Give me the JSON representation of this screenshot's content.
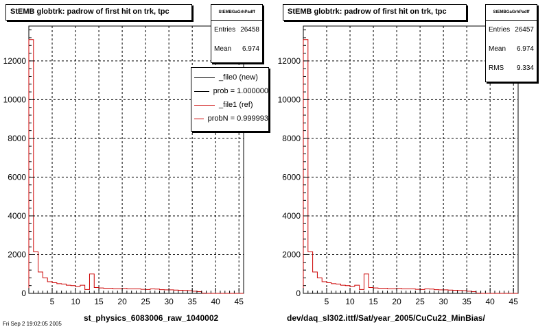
{
  "footer_text": "Fri Sep  2 19:02:05 2005",
  "chart_data": [
    {
      "type": "histogram",
      "title": "StEMB globtrk: padrow of first hit on trk, tpc",
      "xlabel": "st_physics_6083006_raw_1040002",
      "ylabel": "",
      "xlim": [
        0,
        46
      ],
      "ylim": [
        0,
        13800
      ],
      "xticks": [
        5,
        10,
        15,
        20,
        25,
        30,
        35,
        40,
        45
      ],
      "yticks": [
        0,
        2000,
        4000,
        6000,
        8000,
        10000,
        12000
      ],
      "grid": true,
      "stats": {
        "name": "StEMBGaGrhPadff",
        "entries_label": "Entries",
        "entries": "26458",
        "mean_label": "Mean",
        "mean": "6.974"
      },
      "legend": {
        "position": "top-right",
        "entries": [
          {
            "label": "_file0 (new)",
            "color": "#000000"
          },
          {
            "label": "prob = 1.000000",
            "color": "#000000"
          },
          {
            "label": "_file1 (ref)",
            "color": "#cc0000"
          },
          {
            "label": "probN = 0.999993",
            "color": "#cc0000"
          }
        ]
      },
      "series": [
        {
          "name": "_file0 (new)",
          "color": "#cc0000",
          "bins": [
            {
              "x0": 0,
              "x1": 1,
              "y": 13100
            },
            {
              "x0": 1,
              "x1": 2,
              "y": 2150
            },
            {
              "x0": 2,
              "x1": 3,
              "y": 1100
            },
            {
              "x0": 3,
              "x1": 4,
              "y": 800
            },
            {
              "x0": 4,
              "x1": 5,
              "y": 600
            },
            {
              "x0": 5,
              "x1": 6,
              "y": 550
            },
            {
              "x0": 6,
              "x1": 7,
              "y": 500
            },
            {
              "x0": 7,
              "x1": 8,
              "y": 480
            },
            {
              "x0": 8,
              "x1": 9,
              "y": 420
            },
            {
              "x0": 9,
              "x1": 10,
              "y": 400
            },
            {
              "x0": 10,
              "x1": 11,
              "y": 360
            },
            {
              "x0": 11,
              "x1": 12,
              "y": 420
            },
            {
              "x0": 12,
              "x1": 13,
              "y": 200
            },
            {
              "x0": 13,
              "x1": 14,
              "y": 1000
            },
            {
              "x0": 14,
              "x1": 15,
              "y": 300
            },
            {
              "x0": 15,
              "x1": 16,
              "y": 280
            },
            {
              "x0": 16,
              "x1": 17,
              "y": 260
            },
            {
              "x0": 17,
              "x1": 18,
              "y": 260
            },
            {
              "x0": 18,
              "x1": 19,
              "y": 240
            },
            {
              "x0": 19,
              "x1": 20,
              "y": 240
            },
            {
              "x0": 20,
              "x1": 21,
              "y": 250
            },
            {
              "x0": 21,
              "x1": 22,
              "y": 230
            },
            {
              "x0": 22,
              "x1": 23,
              "y": 230
            },
            {
              "x0": 23,
              "x1": 24,
              "y": 230
            },
            {
              "x0": 24,
              "x1": 25,
              "y": 210
            },
            {
              "x0": 25,
              "x1": 26,
              "y": 200
            },
            {
              "x0": 26,
              "x1": 27,
              "y": 230
            },
            {
              "x0": 27,
              "x1": 28,
              "y": 220
            },
            {
              "x0": 28,
              "x1": 29,
              "y": 190
            },
            {
              "x0": 29,
              "x1": 30,
              "y": 180
            },
            {
              "x0": 30,
              "x1": 31,
              "y": 180
            },
            {
              "x0": 31,
              "x1": 32,
              "y": 170
            },
            {
              "x0": 32,
              "x1": 33,
              "y": 160
            },
            {
              "x0": 33,
              "x1": 34,
              "y": 150
            },
            {
              "x0": 34,
              "x1": 35,
              "y": 140
            },
            {
              "x0": 35,
              "x1": 36,
              "y": 110
            },
            {
              "x0": 36,
              "x1": 37,
              "y": 90
            },
            {
              "x0": 37,
              "x1": 38,
              "y": 10
            },
            {
              "x0": 38,
              "x1": 46,
              "y": 0
            }
          ]
        }
      ]
    },
    {
      "type": "histogram",
      "title": "StEMB globtrk: padrow of first hit on trk, tpc",
      "xlabel": "dev/daq_sl302.ittf/Sat/year_2005/CuCu22_MinBias/",
      "ylabel": "",
      "xlim": [
        0,
        46
      ],
      "ylim": [
        0,
        13800
      ],
      "xticks": [
        5,
        10,
        15,
        20,
        25,
        30,
        35,
        40,
        45
      ],
      "yticks": [
        0,
        2000,
        4000,
        6000,
        8000,
        10000,
        12000
      ],
      "grid": true,
      "stats": {
        "name": "StEMBGaGrhPadff",
        "entries_label": "Entries",
        "entries": "26457",
        "mean_label": "Mean",
        "mean": "6.974",
        "rms_label": "RMS",
        "rms": "9.334"
      },
      "series": [
        {
          "name": "_file1 (ref)",
          "color": "#cc0000",
          "bins": [
            {
              "x0": 0,
              "x1": 1,
              "y": 13100
            },
            {
              "x0": 1,
              "x1": 2,
              "y": 2150
            },
            {
              "x0": 2,
              "x1": 3,
              "y": 1100
            },
            {
              "x0": 3,
              "x1": 4,
              "y": 800
            },
            {
              "x0": 4,
              "x1": 5,
              "y": 600
            },
            {
              "x0": 5,
              "x1": 6,
              "y": 550
            },
            {
              "x0": 6,
              "x1": 7,
              "y": 500
            },
            {
              "x0": 7,
              "x1": 8,
              "y": 480
            },
            {
              "x0": 8,
              "x1": 9,
              "y": 420
            },
            {
              "x0": 9,
              "x1": 10,
              "y": 400
            },
            {
              "x0": 10,
              "x1": 11,
              "y": 360
            },
            {
              "x0": 11,
              "x1": 12,
              "y": 420
            },
            {
              "x0": 12,
              "x1": 13,
              "y": 200
            },
            {
              "x0": 13,
              "x1": 14,
              "y": 1000
            },
            {
              "x0": 14,
              "x1": 15,
              "y": 300
            },
            {
              "x0": 15,
              "x1": 16,
              "y": 280
            },
            {
              "x0": 16,
              "x1": 17,
              "y": 260
            },
            {
              "x0": 17,
              "x1": 18,
              "y": 260
            },
            {
              "x0": 18,
              "x1": 19,
              "y": 240
            },
            {
              "x0": 19,
              "x1": 20,
              "y": 240
            },
            {
              "x0": 20,
              "x1": 21,
              "y": 250
            },
            {
              "x0": 21,
              "x1": 22,
              "y": 230
            },
            {
              "x0": 22,
              "x1": 23,
              "y": 230
            },
            {
              "x0": 23,
              "x1": 24,
              "y": 230
            },
            {
              "x0": 24,
              "x1": 25,
              "y": 210
            },
            {
              "x0": 25,
              "x1": 26,
              "y": 200
            },
            {
              "x0": 26,
              "x1": 27,
              "y": 230
            },
            {
              "x0": 27,
              "x1": 28,
              "y": 220
            },
            {
              "x0": 28,
              "x1": 29,
              "y": 190
            },
            {
              "x0": 29,
              "x1": 30,
              "y": 180
            },
            {
              "x0": 30,
              "x1": 31,
              "y": 180
            },
            {
              "x0": 31,
              "x1": 32,
              "y": 170
            },
            {
              "x0": 32,
              "x1": 33,
              "y": 160
            },
            {
              "x0": 33,
              "x1": 34,
              "y": 150
            },
            {
              "x0": 34,
              "x1": 35,
              "y": 140
            },
            {
              "x0": 35,
              "x1": 36,
              "y": 110
            },
            {
              "x0": 36,
              "x1": 37,
              "y": 90
            },
            {
              "x0": 37,
              "x1": 38,
              "y": 10
            },
            {
              "x0": 38,
              "x1": 46,
              "y": 0
            }
          ]
        }
      ]
    }
  ]
}
